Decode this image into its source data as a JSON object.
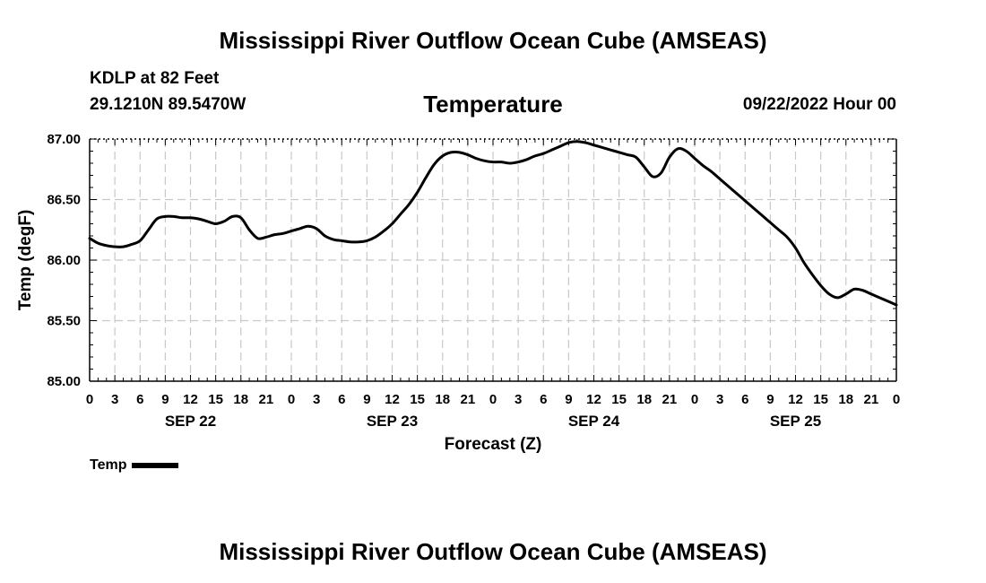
{
  "header": {
    "main_title": "Mississippi River Outflow Ocean Cube (AMSEAS)",
    "station": "KDLP at 82 Feet",
    "coordinates": "29.1210N  89.5470W",
    "datetime": "09/22/2022 Hour 00",
    "footer_title": "Mississippi River Outflow Ocean Cube (AMSEAS)"
  },
  "chart_data": {
    "type": "line",
    "title": "Temperature",
    "xlabel": "Forecast (Z)",
    "ylabel": "Temp (degF)",
    "x_unit": "forecast hours from 09/22/2022 00Z",
    "xlim": [
      0,
      96
    ],
    "ylim": [
      85.0,
      87.0
    ],
    "y_ticks": [
      85.0,
      85.5,
      86.0,
      86.5,
      87.0
    ],
    "y_tick_labels": [
      "85.00",
      "85.50",
      "86.00",
      "86.50",
      "87.00"
    ],
    "x_ticks": [
      0,
      3,
      6,
      9,
      12,
      15,
      18,
      21,
      24,
      27,
      30,
      33,
      36,
      39,
      42,
      45,
      48,
      51,
      54,
      57,
      60,
      63,
      66,
      69,
      72,
      75,
      78,
      81,
      84,
      87,
      90,
      93,
      96
    ],
    "x_tick_labels": [
      "0",
      "3",
      "6",
      "9",
      "12",
      "15",
      "18",
      "21",
      "0",
      "3",
      "6",
      "9",
      "12",
      "15",
      "18",
      "21",
      "0",
      "3",
      "6",
      "9",
      "12",
      "15",
      "18",
      "21",
      "0",
      "3",
      "6",
      "9",
      "12",
      "15",
      "18",
      "21",
      "0"
    ],
    "day_labels": [
      {
        "label": "SEP 22",
        "x": 12
      },
      {
        "label": "SEP 23",
        "x": 36
      },
      {
        "label": "SEP 24",
        "x": 60
      },
      {
        "label": "SEP 25",
        "x": 84
      }
    ],
    "grid": true,
    "legend_position": "bottom-left",
    "series": [
      {
        "name": "Temp",
        "color": "#000000",
        "x": [
          0,
          1,
          2,
          3,
          4,
          5,
          6,
          7,
          8,
          9,
          10,
          11,
          12,
          13,
          14,
          15,
          16,
          17,
          18,
          19,
          20,
          21,
          22,
          23,
          24,
          25,
          26,
          27,
          28,
          29,
          30,
          31,
          32,
          33,
          34,
          35,
          36,
          37,
          38,
          39,
          40,
          41,
          42,
          43,
          44,
          45,
          46,
          47,
          48,
          49,
          50,
          51,
          52,
          53,
          54,
          55,
          56,
          57,
          58,
          59,
          60,
          61,
          62,
          63,
          64,
          65,
          66,
          67,
          68,
          69,
          70,
          71,
          72,
          73,
          74,
          75,
          76,
          77,
          78,
          79,
          80,
          81,
          82,
          83,
          84,
          85,
          86,
          87,
          88,
          89,
          90,
          91,
          92,
          93,
          94,
          95,
          96
        ],
        "values": [
          86.18,
          86.14,
          86.12,
          86.11,
          86.11,
          86.13,
          86.16,
          86.25,
          86.34,
          86.36,
          86.36,
          86.35,
          86.35,
          86.34,
          86.32,
          86.3,
          86.32,
          86.36,
          86.35,
          86.25,
          86.18,
          86.19,
          86.21,
          86.22,
          86.24,
          86.26,
          86.28,
          86.26,
          86.2,
          86.17,
          86.16,
          86.15,
          86.15,
          86.16,
          86.19,
          86.24,
          86.3,
          86.38,
          86.46,
          86.56,
          86.68,
          86.79,
          86.86,
          86.89,
          86.89,
          86.87,
          86.84,
          86.82,
          86.81,
          86.81,
          86.8,
          86.81,
          86.83,
          86.86,
          86.88,
          86.91,
          86.94,
          86.97,
          86.98,
          86.97,
          86.95,
          86.93,
          86.91,
          86.89,
          86.87,
          86.85,
          86.77,
          86.69,
          86.72,
          86.85,
          86.92,
          86.9,
          86.84,
          86.78,
          86.73,
          86.67,
          86.61,
          86.55,
          86.49,
          86.43,
          86.37,
          86.31,
          86.25,
          86.19,
          86.1,
          85.98,
          85.88,
          85.79,
          85.72,
          85.69,
          85.72,
          85.76,
          85.75,
          85.72,
          85.69,
          85.66,
          85.63
        ]
      }
    ],
    "legend_label": "Temp"
  }
}
